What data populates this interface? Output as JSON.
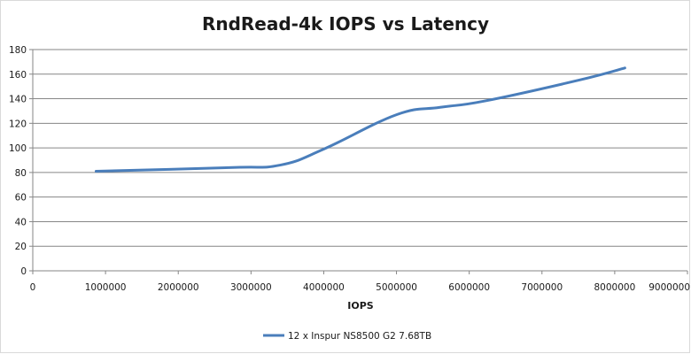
{
  "chart_data": {
    "type": "line",
    "title": "RndRead-4k IOPS vs Latency",
    "xlabel": "IOPS",
    "ylabel": "",
    "xlim": [
      0,
      9000000
    ],
    "ylim": [
      0,
      180
    ],
    "x_ticks": [
      "0",
      "1000000",
      "2000000",
      "3000000",
      "4000000",
      "5000000",
      "6000000",
      "7000000",
      "8000000",
      "9000000"
    ],
    "y_ticks": [
      "0",
      "20",
      "40",
      "60",
      "80",
      "100",
      "120",
      "140",
      "160",
      "180"
    ],
    "x_tick_values": [
      0,
      1000000,
      2000000,
      3000000,
      4000000,
      5000000,
      6000000,
      7000000,
      8000000,
      9000000
    ],
    "y_tick_values": [
      0,
      20,
      40,
      60,
      80,
      100,
      120,
      140,
      160,
      180
    ],
    "grid": "horizontal",
    "legend_position": "bottom",
    "series": [
      {
        "name": "12 x Inspur NS8500 G2 7.68TB",
        "color": "#4a7ebb",
        "x": [
          870000,
          2700000,
          3400000,
          4000000,
          5000000,
          5600000,
          6200000,
          7500000,
          8140000
        ],
        "y": [
          81,
          84,
          86,
          99,
          127,
          133,
          138,
          155,
          165
        ]
      }
    ]
  }
}
